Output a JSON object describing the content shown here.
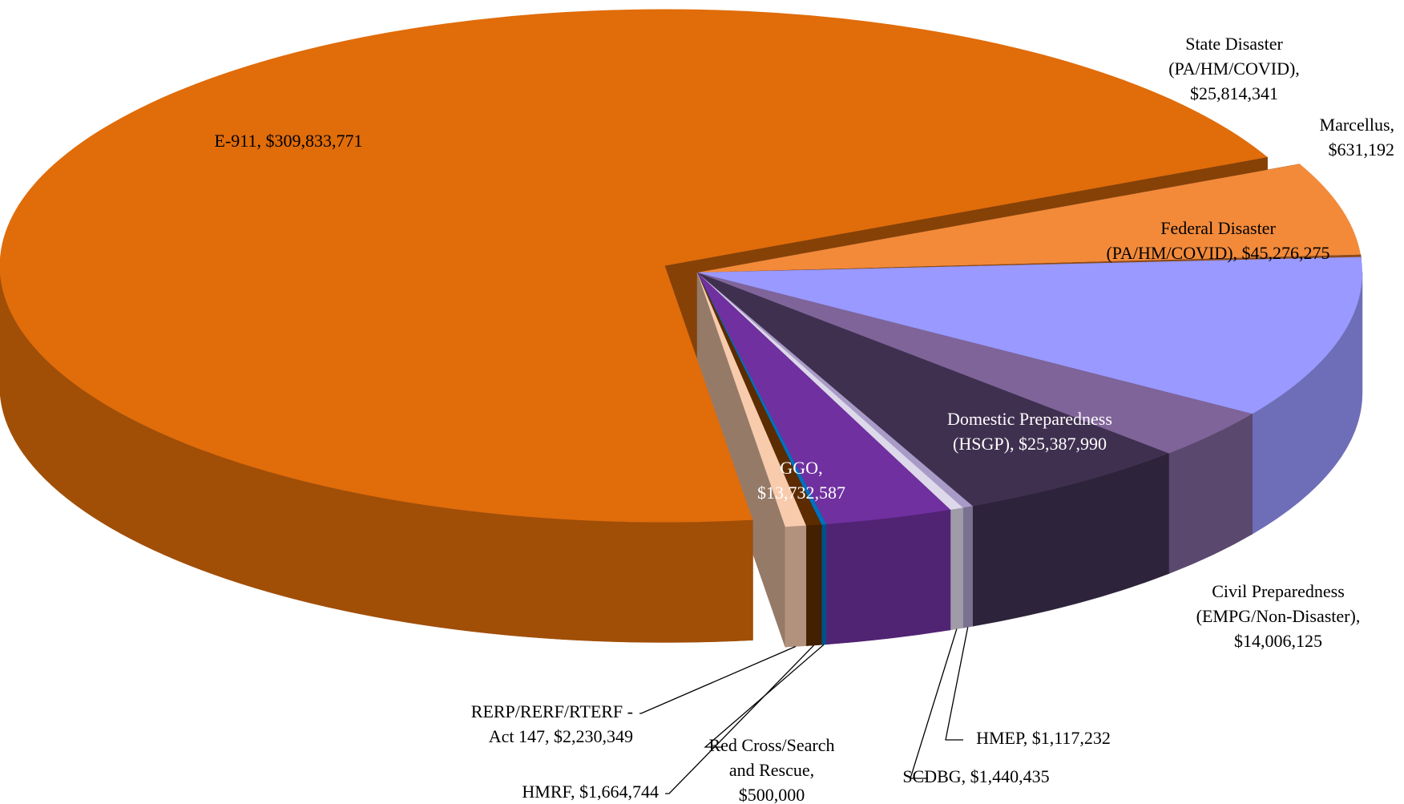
{
  "chart_data": {
    "type": "pie3d",
    "categories": [
      "E-911",
      "State Disaster (PA/HM/COVID)",
      "Marcellus",
      "Federal Disaster (PA/HM/COVID)",
      "Civil Preparedness (EMPG/Non-Disaster)",
      "Domestic Preparedness (HSGP)",
      "HMEP",
      "SCDBG",
      "GGO",
      "Red Cross/Search and Rescue",
      "HMRF",
      "RERP/RERF/RTERF - Act 147"
    ],
    "values": [
      309833771,
      25814341,
      631192,
      45276275,
      14006125,
      25387990,
      1117232,
      1440435,
      13732587,
      500000,
      1664744,
      2230349
    ],
    "value_labels": [
      "$309,833,771",
      "$25,814,341",
      "$631,192",
      "$45,276,275",
      "$14,006,125",
      "$25,387,990",
      "$1,117,232",
      "$1,440,435",
      "$13,732,587",
      "$500,000",
      "$1,664,744",
      "$2,230,349"
    ],
    "colors": [
      "#e06c0a",
      "#f28a3a",
      "#8b4a1a",
      "#9999ff",
      "#7f6499",
      "#3f3050",
      "#a99bc7",
      "#ddd8ea",
      "#7030a0",
      "#0070c0",
      "#5c2c00",
      "#f8cbad"
    ]
  }
}
